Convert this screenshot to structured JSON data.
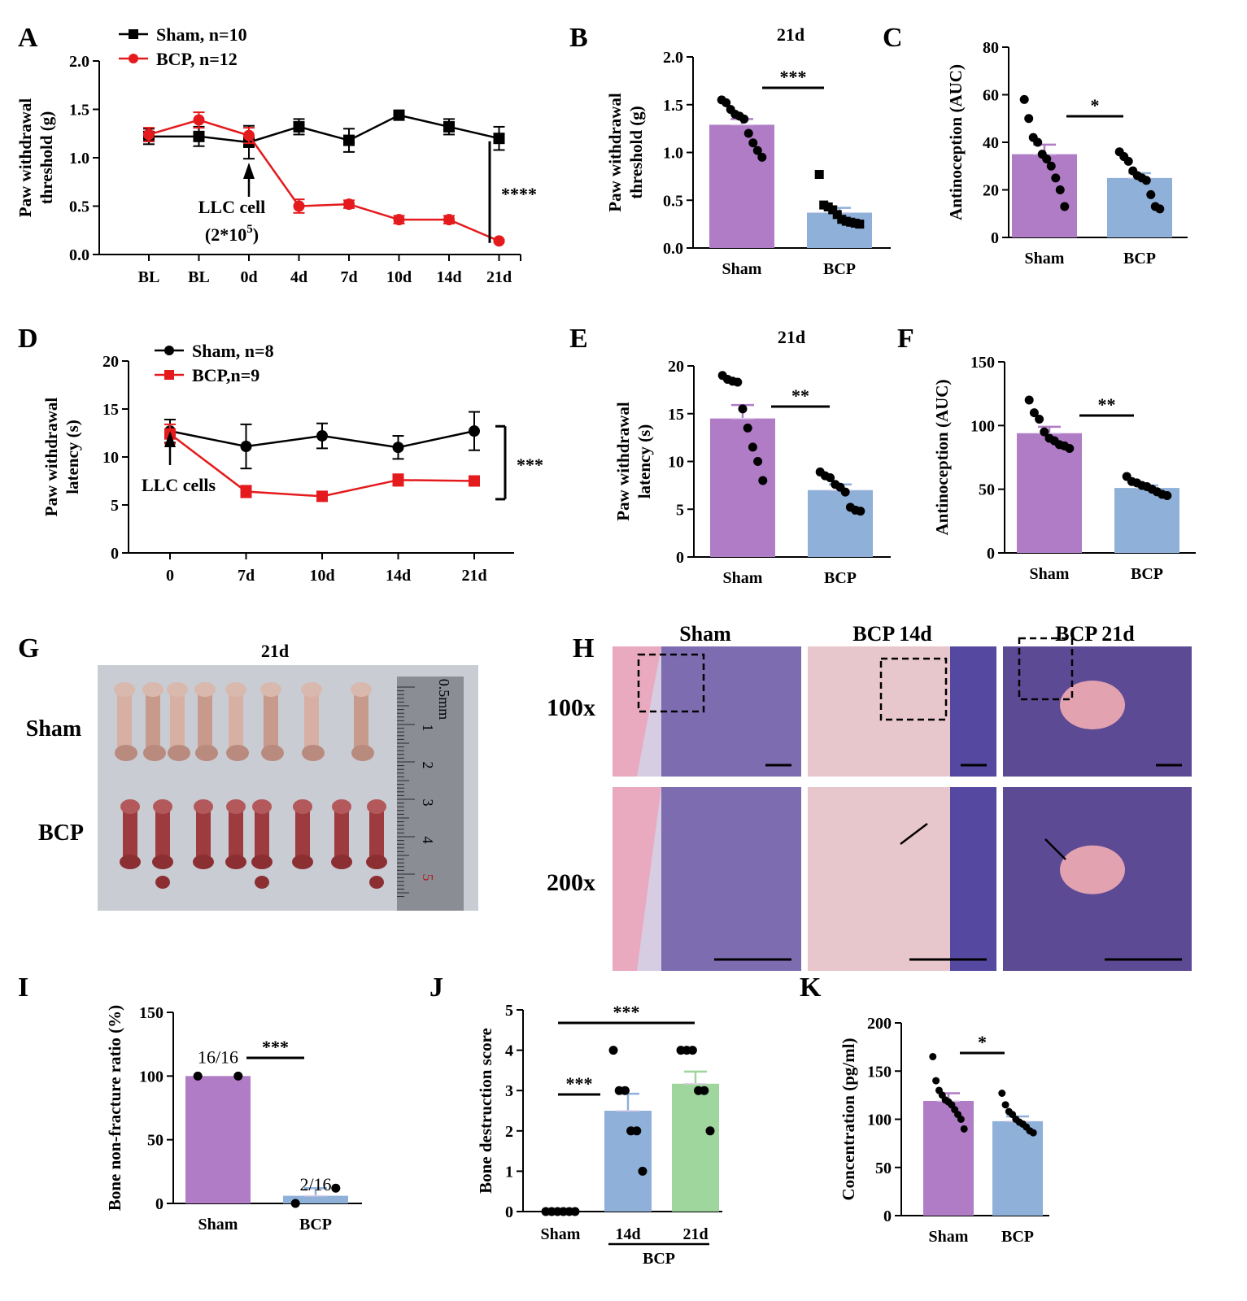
{
  "chart_data": [
    {
      "panel": "A",
      "type": "line",
      "categories": [
        "BL",
        "BL",
        "0d",
        "4d",
        "7d",
        "10d",
        "14d",
        "21d"
      ],
      "ylabel": "Paw withdrawal\nthreshold (g)",
      "ylim": [
        0,
        2.0
      ],
      "yticks": [
        "0.0",
        "0.5",
        "1.0",
        "1.5",
        "2.0"
      ],
      "legend_position": "top-left",
      "series": [
        {
          "name": "Sham, n=10",
          "color": "#000000",
          "marker": "square",
          "values": [
            1.22,
            1.22,
            1.16,
            1.32,
            1.18,
            1.44,
            1.32,
            1.2
          ],
          "errors": [
            0.08,
            0.1,
            0.17,
            0.08,
            0.12,
            0.02,
            0.08,
            0.12
          ]
        },
        {
          "name": "BCP, n=12",
          "color": "#e41a1c",
          "marker": "circle",
          "values": [
            1.24,
            1.39,
            1.23,
            0.5,
            0.52,
            0.36,
            0.36,
            0.14
          ],
          "errors": [
            0.07,
            0.08,
            0.08,
            0.07,
            0.04,
            0.04,
            0.04,
            0.01
          ]
        }
      ],
      "annotation": "LLC cell",
      "annotation_line2": "(2*10",
      "annotation_sup": "5",
      "annotation_close": ")",
      "significance": "****"
    },
    {
      "panel": "B",
      "type": "bar",
      "title": "21d",
      "categories": [
        "Sham",
        "BCP"
      ],
      "values": [
        1.29,
        0.37
      ],
      "errors": [
        0.06,
        0.05
      ],
      "points": [
        [
          1.55,
          1.52,
          1.45,
          1.4,
          1.38,
          1.35,
          1.2,
          1.1,
          1.02,
          0.95
        ],
        [
          0.77,
          0.45,
          0.43,
          0.4,
          0.35,
          0.3,
          0.28,
          0.27,
          0.26,
          0.25
        ]
      ],
      "ylabel": "Paw withdrawal\nthreshold (g)",
      "ylim": [
        0,
        2.0
      ],
      "yticks": [
        "0.0",
        "0.5",
        "1.0",
        "1.5",
        "2.0"
      ],
      "significance": "***",
      "colors": [
        "#b07cc6",
        "#8fb0d8"
      ]
    },
    {
      "panel": "C",
      "type": "bar",
      "categories": [
        "Sham",
        "BCP"
      ],
      "values": [
        35,
        25
      ],
      "errors": [
        4,
        2
      ],
      "points": [
        [
          58,
          50,
          42,
          40,
          35,
          33,
          30,
          25,
          20,
          13
        ],
        [
          36,
          34,
          32,
          28,
          26,
          25,
          24,
          18,
          13,
          12
        ]
      ],
      "ylabel": "Antinoception (AUC)",
      "ylim": [
        0,
        80
      ],
      "yticks": [
        "0",
        "20",
        "40",
        "60",
        "80"
      ],
      "significance": "*",
      "colors": [
        "#b07cc6",
        "#8fb0d8"
      ]
    },
    {
      "panel": "D",
      "type": "line",
      "categories": [
        "0",
        "7d",
        "10d",
        "14d",
        "21d"
      ],
      "ylabel": "Paw withdrawal\nlatency (s)",
      "ylim": [
        0,
        20
      ],
      "yticks": [
        "0",
        "5",
        "10",
        "15",
        "20"
      ],
      "legend_position": "top-left",
      "series": [
        {
          "name": "Sham, n=8",
          "color": "#000000",
          "marker": "circle",
          "values": [
            12.7,
            11.1,
            12.2,
            11.0,
            12.7
          ],
          "errors": [
            1.2,
            2.3,
            1.3,
            1.2,
            2.0
          ]
        },
        {
          "name": "BCP,n=9",
          "color": "#e41a1c",
          "marker": "square",
          "values": [
            12.4,
            6.4,
            5.9,
            7.6,
            7.5
          ],
          "errors": [
            1.0,
            0.6,
            0.4,
            0.6,
            0.3
          ]
        }
      ],
      "annotation": "LLC cells",
      "significance": "***"
    },
    {
      "panel": "E",
      "type": "bar",
      "title": "21d",
      "categories": [
        "Sham",
        "BCP"
      ],
      "values": [
        14.5,
        7.0
      ],
      "errors": [
        1.4,
        0.6
      ],
      "points": [
        [
          19.0,
          18.6,
          18.4,
          18.3,
          15.5,
          13.5,
          11.5,
          10.0,
          8.0
        ],
        [
          8.9,
          8.5,
          8.3,
          7.6,
          7.3,
          6.8,
          5.2,
          4.9,
          4.8
        ]
      ],
      "ylabel": "Paw withdrawal\nlatency (s)",
      "ylim": [
        0,
        20
      ],
      "yticks": [
        "0",
        "5",
        "10",
        "15",
        "20"
      ],
      "significance": "**",
      "colors": [
        "#b07cc6",
        "#8fb0d8"
      ]
    },
    {
      "panel": "F",
      "type": "bar",
      "categories": [
        "Sham",
        "BCP"
      ],
      "values": [
        94,
        51
      ],
      "errors": [
        5,
        2
      ],
      "points": [
        [
          120,
          110,
          105,
          95,
          90,
          88,
          85,
          84,
          82
        ],
        [
          60,
          56,
          55,
          53,
          52,
          50,
          48,
          46,
          45
        ]
      ],
      "ylabel": "Antinoception (AUC)",
      "ylim": [
        0,
        150
      ],
      "yticks": [
        "0",
        "50",
        "100",
        "150"
      ],
      "significance": "**",
      "colors": [
        "#b07cc6",
        "#8fb0d8"
      ]
    },
    {
      "panel": "H",
      "type": "bar",
      "categories": [
        "Sham",
        "BCP"
      ],
      "values": [
        100,
        6
      ],
      "errors": [
        0,
        6
      ],
      "points": [
        [
          100,
          100
        ],
        [
          0,
          12
        ]
      ],
      "bar_labels": [
        "16/16",
        "2/16"
      ],
      "ylabel": "Bone non-fracture ratio (%)",
      "ylim": [
        0,
        150
      ],
      "yticks": [
        "0",
        "50",
        "100",
        "150"
      ],
      "significance": "***",
      "colors": [
        "#b07cc6",
        "#8fb0d8"
      ]
    },
    {
      "panel": "J",
      "type": "bar",
      "categories": [
        "Sham",
        "14d",
        "21d"
      ],
      "group_label": "BCP",
      "values": [
        0,
        2.5,
        3.17
      ],
      "errors": [
        0,
        0.42,
        0.3
      ],
      "points": [
        [
          0,
          0,
          0,
          0,
          0,
          0
        ],
        [
          4,
          3,
          3,
          2,
          2,
          1
        ],
        [
          4,
          4,
          4,
          3,
          3,
          2
        ]
      ],
      "ylabel": "Bone destruction score",
      "ylim": [
        0,
        5
      ],
      "yticks": [
        "0",
        "1",
        "2",
        "3",
        "4",
        "5"
      ],
      "significance": [
        "***",
        "***"
      ],
      "colors": [
        "#b07cc6",
        "#8fb0d8",
        "#9ed69e"
      ]
    },
    {
      "panel": "K",
      "type": "bar",
      "categories": [
        "Sham",
        "BCP"
      ],
      "values": [
        119,
        98
      ],
      "errors": [
        8,
        5
      ],
      "points": [
        [
          165,
          140,
          130,
          125,
          120,
          118,
          115,
          110,
          105,
          100,
          90
        ],
        [
          127,
          115,
          108,
          105,
          100,
          97,
          95,
          92,
          88,
          86
        ]
      ],
      "ylabel": "Concentration (pg/ml)",
      "ylim": [
        0,
        200
      ],
      "yticks": [
        "0",
        "50",
        "100",
        "150",
        "200"
      ],
      "significance": "*",
      "colors": [
        "#b07cc6",
        "#8fb0d8"
      ]
    }
  ],
  "panels": {
    "letters": [
      "A",
      "B",
      "C",
      "D",
      "E",
      "F",
      "G",
      "H",
      "I",
      "J",
      "K"
    ],
    "G": {
      "title": "21d",
      "row_labels": [
        "Sham",
        "BCP"
      ],
      "ruler_numbers": [
        "1",
        "2",
        "3",
        "4",
        "5"
      ],
      "ruler_unit": "0.5mm"
    },
    "I": {
      "columns": [
        "Sham",
        "BCP 14d",
        "BCP 21d"
      ],
      "rows": [
        "100x",
        "200x"
      ]
    }
  }
}
